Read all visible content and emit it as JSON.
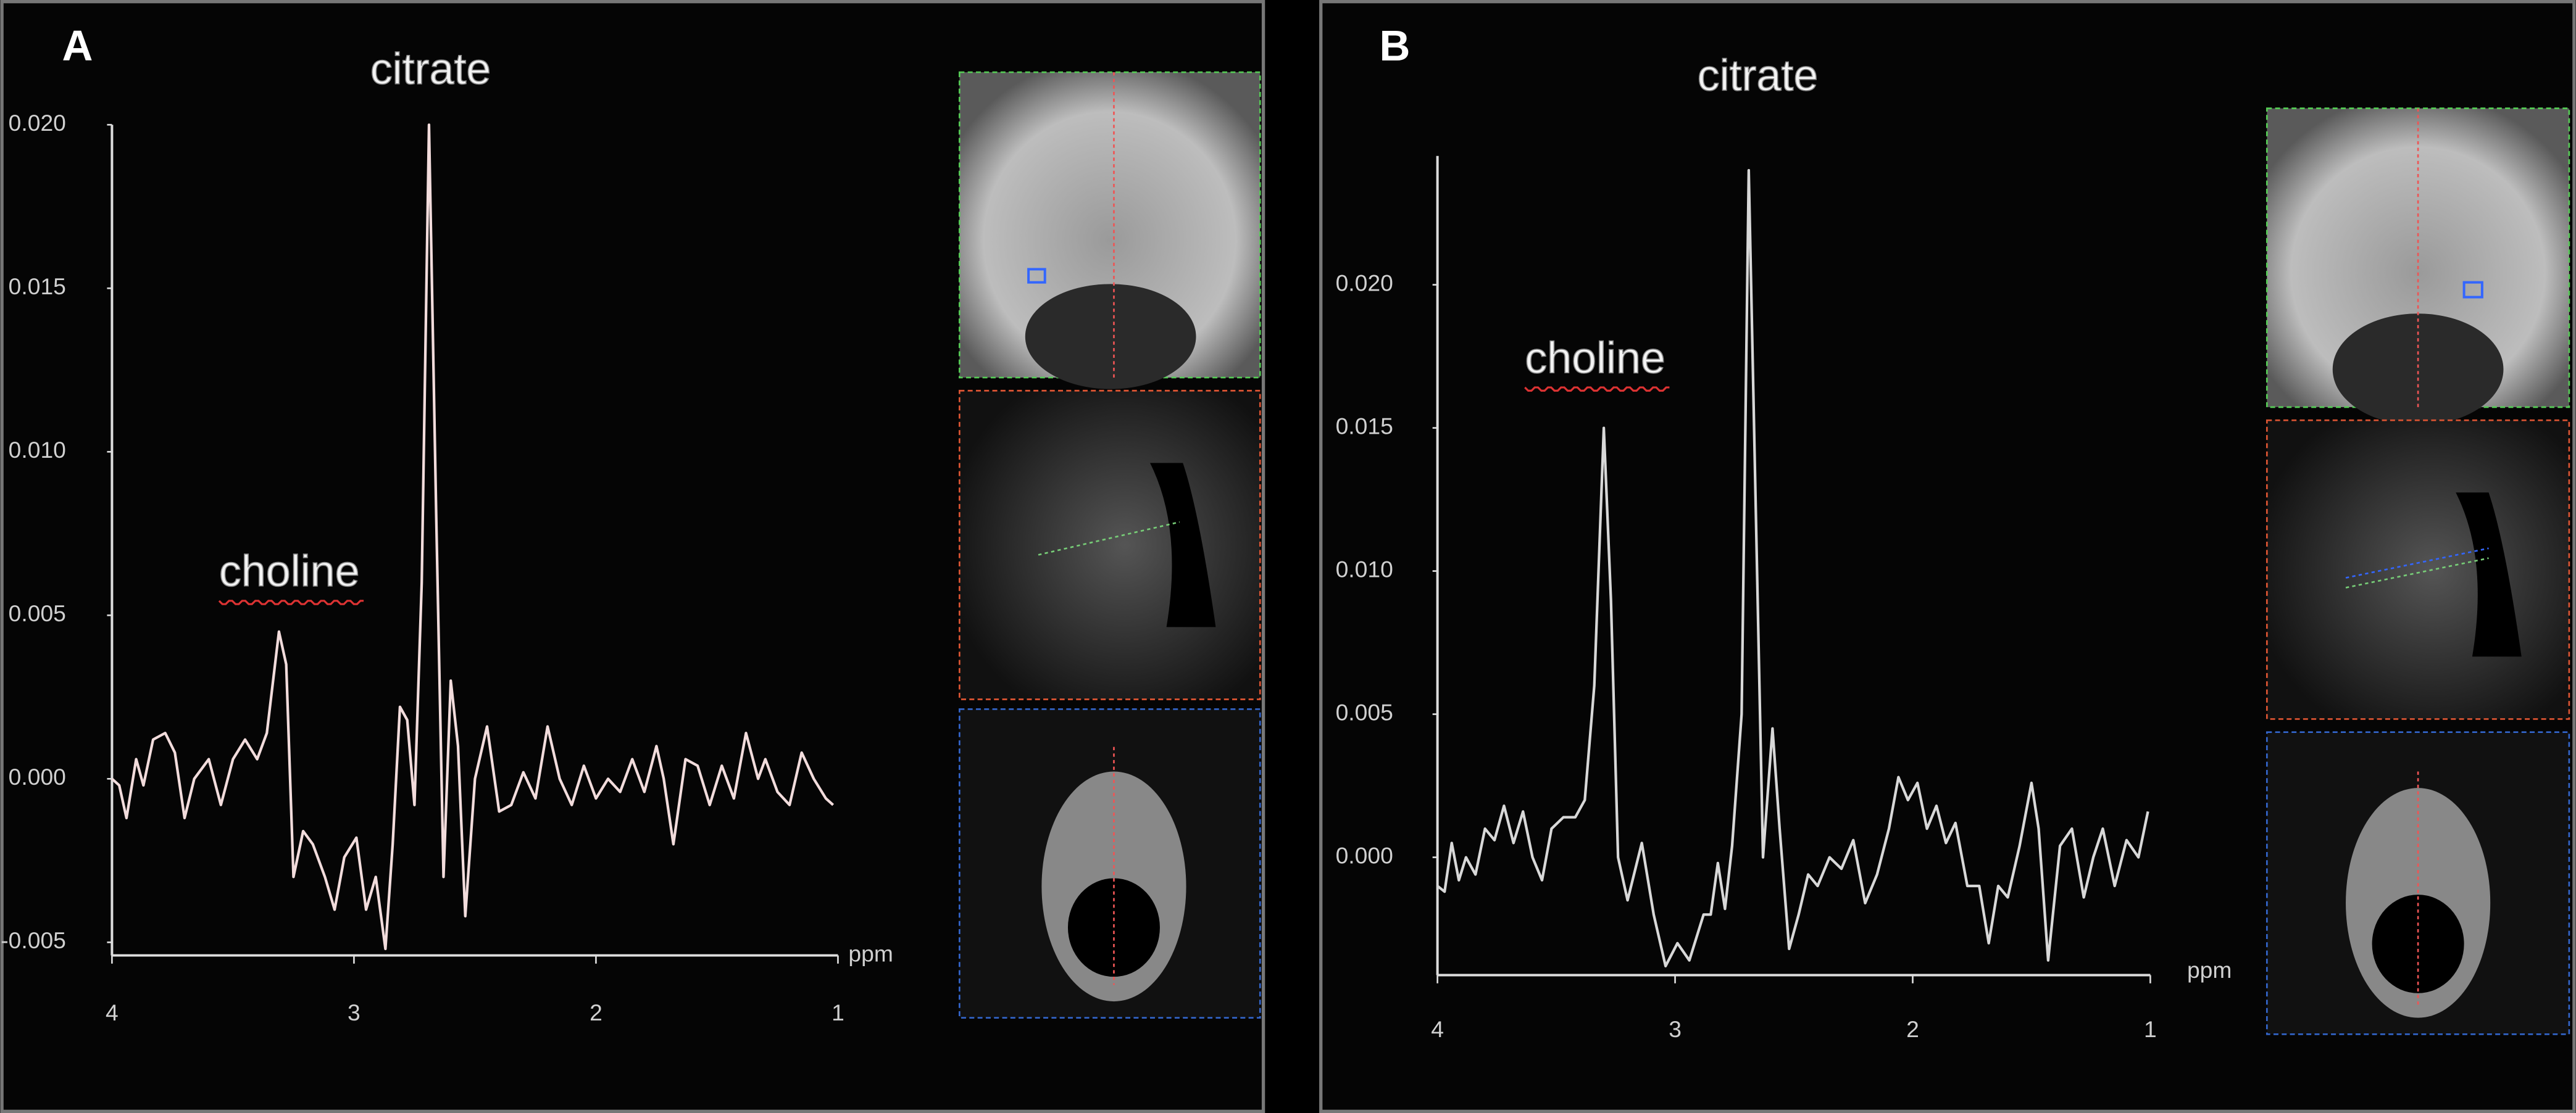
{
  "chart_data": [
    {
      "type": "line",
      "panel_label": "A",
      "annotations": [
        "citrate",
        "choline"
      ],
      "x_label": "ppm",
      "xlim": [
        4,
        1
      ],
      "xticks": [
        4,
        3,
        2,
        1
      ],
      "ylim": [
        -0.0053,
        0.02
      ],
      "yticks": [
        {
          "value": 0.02,
          "label": "0.020"
        },
        {
          "value": 0.015,
          "label": "0.015"
        },
        {
          "value": 0.01,
          "label": "0.010"
        },
        {
          "value": 0.005,
          "label": "0.005"
        },
        {
          "value": 0,
          "label": "0.000"
        },
        {
          "value": -0.005,
          "label": "-0.005"
        }
      ],
      "color": "#f2dcdc",
      "x": [
        4.0,
        3.97,
        3.94,
        3.9,
        3.87,
        3.83,
        3.78,
        3.74,
        3.7,
        3.66,
        3.6,
        3.55,
        3.5,
        3.45,
        3.4,
        3.36,
        3.31,
        3.28,
        3.25,
        3.21,
        3.17,
        3.12,
        3.08,
        3.04,
        2.99,
        2.95,
        2.91,
        2.87,
        2.84,
        2.81,
        2.78,
        2.75,
        2.72,
        2.69,
        2.66,
        2.63,
        2.6,
        2.57,
        2.54,
        2.5,
        2.45,
        2.4,
        2.35,
        2.3,
        2.25,
        2.2,
        2.15,
        2.1,
        2.05,
        2.0,
        1.95,
        1.9,
        1.85,
        1.8,
        1.75,
        1.72,
        1.68,
        1.63,
        1.58,
        1.53,
        1.48,
        1.43,
        1.38,
        1.33,
        1.3,
        1.25,
        1.2,
        1.15,
        1.1,
        1.05,
        1.02
      ],
      "values": [
        0,
        -0.0002,
        -0.0012,
        0.0006,
        -0.0002,
        0.0012,
        0.0014,
        0.0008,
        -0.0012,
        0,
        0.0006,
        -0.0008,
        0.0006,
        0.0012,
        0.0006,
        0.0014,
        0.0045,
        0.0035,
        -0.003,
        -0.0016,
        -0.002,
        -0.003,
        -0.004,
        -0.0024,
        -0.0018,
        -0.004,
        -0.003,
        -0.0052,
        -0.002,
        0.0022,
        0.0018,
        -0.0008,
        0.006,
        0.02,
        0.008,
        -0.003,
        0.003,
        0.001,
        -0.0042,
        0,
        0.0016,
        -0.001,
        -0.0008,
        0.0002,
        -0.0006,
        0.0016,
        0,
        -0.0008,
        0.0004,
        -0.0006,
        0,
        -0.0004,
        0.0006,
        -0.0004,
        0.001,
        0,
        -0.002,
        0.0006,
        0.0004,
        -0.0008,
        0.0004,
        -0.0006,
        0.0014,
        0,
        0.0006,
        -0.0004,
        -0.0008,
        0.0008,
        0,
        -0.0006,
        -0.0008
      ]
    },
    {
      "type": "line",
      "panel_label": "B",
      "annotations": [
        "citrate",
        "choline"
      ],
      "x_label": "ppm",
      "xlim": [
        4,
        1
      ],
      "xticks": [
        4,
        3,
        2,
        1
      ],
      "ylim": [
        -0.004,
        0.0245
      ],
      "yticks": [
        {
          "value": 0.02,
          "label": "0.020"
        },
        {
          "value": 0.015,
          "label": "0.015"
        },
        {
          "value": 0.01,
          "label": "0.010"
        },
        {
          "value": 0.005,
          "label": "0.005"
        },
        {
          "value": 0,
          "label": "0.000"
        }
      ],
      "color": "#d8d8d8",
      "x": [
        4.0,
        3.97,
        3.94,
        3.91,
        3.88,
        3.84,
        3.8,
        3.76,
        3.72,
        3.68,
        3.64,
        3.6,
        3.56,
        3.52,
        3.47,
        3.42,
        3.38,
        3.34,
        3.3,
        3.27,
        3.24,
        3.2,
        3.14,
        3.09,
        3.04,
        2.99,
        2.94,
        2.88,
        2.85,
        2.82,
        2.79,
        2.76,
        2.72,
        2.69,
        2.66,
        2.63,
        2.59,
        2.56,
        2.52,
        2.48,
        2.44,
        2.4,
        2.35,
        2.3,
        2.25,
        2.2,
        2.15,
        2.1,
        2.06,
        2.02,
        1.98,
        1.94,
        1.9,
        1.86,
        1.82,
        1.77,
        1.72,
        1.68,
        1.64,
        1.6,
        1.55,
        1.5,
        1.47,
        1.43,
        1.38,
        1.33,
        1.28,
        1.24,
        1.2,
        1.15,
        1.1,
        1.05,
        1.01
      ],
      "values": [
        -0.001,
        -0.0012,
        0.0005,
        -0.0008,
        0,
        -0.0006,
        0.001,
        0.0006,
        0.0018,
        0.0005,
        0.0016,
        0,
        -0.0008,
        0.001,
        0.0014,
        0.0014,
        0.002,
        0.006,
        0.015,
        0.009,
        0,
        -0.0015,
        0.0005,
        -0.002,
        -0.0038,
        -0.003,
        -0.0036,
        -0.002,
        -0.002,
        -0.0002,
        -0.0018,
        0.0004,
        0.005,
        0.024,
        0.012,
        0,
        0.0045,
        0.001,
        -0.0032,
        -0.002,
        -0.0006,
        -0.001,
        0,
        -0.0004,
        0.0006,
        -0.0016,
        -0.0006,
        0.001,
        0.0028,
        0.002,
        0.0026,
        0.001,
        0.0018,
        0.0005,
        0.0012,
        -0.001,
        -0.001,
        -0.003,
        -0.001,
        -0.0014,
        0.0004,
        0.0026,
        0.001,
        -0.0036,
        0.0004,
        0.001,
        -0.0014,
        0,
        0.001,
        -0.001,
        0.0006,
        0,
        0.0016
      ]
    }
  ]
}
